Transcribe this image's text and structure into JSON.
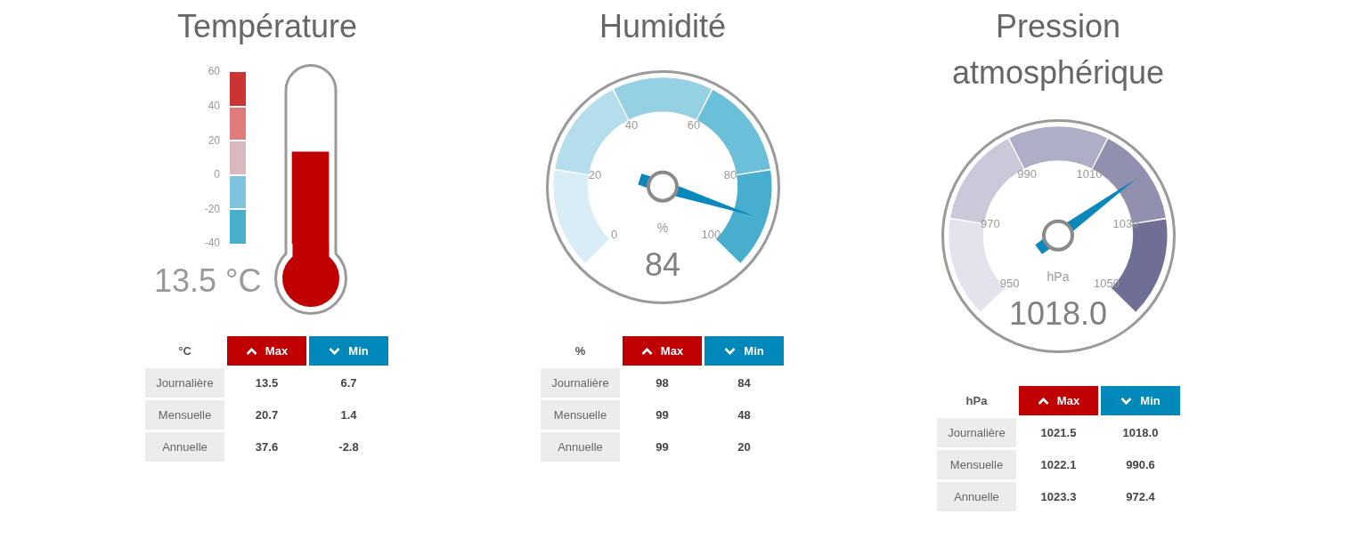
{
  "chart_data": [
    {
      "type": "bar",
      "title": "Température",
      "categories": [
        null
      ],
      "base": [
        -40
      ],
      "values": [
        53.5
      ],
      "color": "#c00000",
      "ylim": [
        -40,
        60
      ],
      "yticks": [
        -40,
        -20,
        0,
        20,
        40,
        60
      ],
      "annotations": [
        "13.5 °C"
      ]
    },
    {
      "type": "heatmap",
      "title": "°C",
      "categories": [
        "Max",
        "Min"
      ],
      "y_categories": [
        "Journalière",
        "Mensuelle",
        "Annuelle"
      ],
      "cells": [
        [
          13.5,
          6.7
        ],
        [
          20.7,
          1.4
        ],
        [
          37.6,
          -2.8
        ]
      ],
      "data_labels": true
    },
    {
      "type": "donut",
      "title": "Humidité",
      "categories": [
        "0",
        "20",
        "40",
        "60",
        "80"
      ],
      "values": [
        20,
        20,
        20,
        20,
        20
      ],
      "colors": [
        "#d8edf5",
        "#b4deec",
        "#96d0e3",
        "#6cbfd9",
        "#47aecf"
      ],
      "needle": "80",
      "annotations": [
        "100",
        "%",
        "84"
      ]
    },
    {
      "type": "heatmap",
      "title": "%",
      "categories": [
        "Max",
        "Min"
      ],
      "y_categories": [
        "Journalière",
        "Mensuelle",
        "Annuelle"
      ],
      "cells": [
        [
          98,
          84
        ],
        [
          99,
          48
        ],
        [
          99,
          20
        ]
      ],
      "data_labels": true
    },
    {
      "type": "donut",
      "title": "Pression atmosphérique",
      "categories": [
        "950",
        "970",
        "990",
        "1010",
        "1030"
      ],
      "values": [
        20,
        20,
        20,
        20,
        20
      ],
      "colors": [
        "#e3e3ed",
        "#c9c9da",
        "#aeaec7",
        "#9191af",
        "#6f6f95"
      ],
      "needle": "1010",
      "annotations": [
        "1050",
        "hPa",
        "1018.0"
      ]
    },
    {
      "type": "heatmap",
      "title": "hPa",
      "categories": [
        "Max",
        "Min"
      ],
      "y_categories": [
        "Journalière",
        "Mensuelle",
        "Annuelle"
      ],
      "cells": [
        [
          1021.5,
          1018.0
        ],
        [
          1022.1,
          990.6
        ],
        [
          1023.3,
          972.4
        ]
      ],
      "cell_labels": [
        [
          "1021.5",
          "1018.0"
        ],
        [
          "1022.1",
          "990.6"
        ],
        [
          "1023.3",
          "972.4"
        ]
      ]
    }
  ]
}
